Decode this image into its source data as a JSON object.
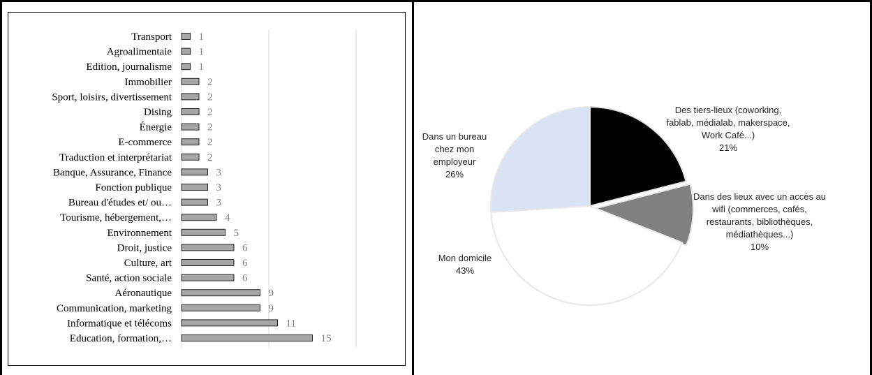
{
  "chart_data": [
    {
      "type": "bar",
      "orientation": "horizontal",
      "categories": [
        "Transport",
        "Agroalimentaie",
        "Edition, journalisme",
        "Immobilier",
        "Sport, loisirs, divertissement",
        "Dising",
        "Énergie",
        "E-commerce",
        "Traduction et interprétariat",
        "Banque, Assurance, Finance",
        "Fonction publique",
        "Bureau d'études et/ ou…",
        "Tourisme, hébergement,…",
        "Environnement",
        "Droit, justice",
        "Culture, art",
        "Santé, action sociale",
        "Aéronautique",
        "Communication, marketing",
        "Informatique et télécoms",
        "Education, formation,…"
      ],
      "values": [
        1,
        1,
        1,
        2,
        2,
        2,
        2,
        2,
        2,
        3,
        3,
        3,
        4,
        5,
        6,
        6,
        6,
        9,
        9,
        11,
        15
      ],
      "xlim": [
        0,
        20
      ],
      "grid": true,
      "bar_color": "#a6a6a6",
      "title": "",
      "xlabel": "",
      "ylabel": ""
    },
    {
      "type": "pie",
      "slices": [
        {
          "label": "Des tiers-lieux (coworking, fablab, médialab, makerspace, Work Café...)",
          "lines": [
            "Des tiers-lieux (coworking,",
            "fablab, médialab, makerspace,",
            "Work Café...)",
            "21%"
          ],
          "value": 21,
          "color": "#000000"
        },
        {
          "label": "Dans des lieux avec un accès au wifi (commerces, cafés, restaurants, bibliothèques, médiathèques...)",
          "lines": [
            "Dans des lieux avec un accès au",
            "wifi (commerces, cafés,",
            "restaurants, bibliothèques,",
            "médiathèques...)",
            "10%"
          ],
          "value": 10,
          "color": "#808080"
        },
        {
          "label": "Mon domicile",
          "lines": [
            "Mon domicile",
            "43%"
          ],
          "value": 43,
          "color": "#ffffff"
        },
        {
          "label": "Dans un bureau chez mon employeur",
          "lines": [
            "Dans un bureau",
            "chez mon",
            "employeur",
            "26%"
          ],
          "value": 26,
          "color": "#dae3f3"
        }
      ],
      "title": ""
    }
  ]
}
